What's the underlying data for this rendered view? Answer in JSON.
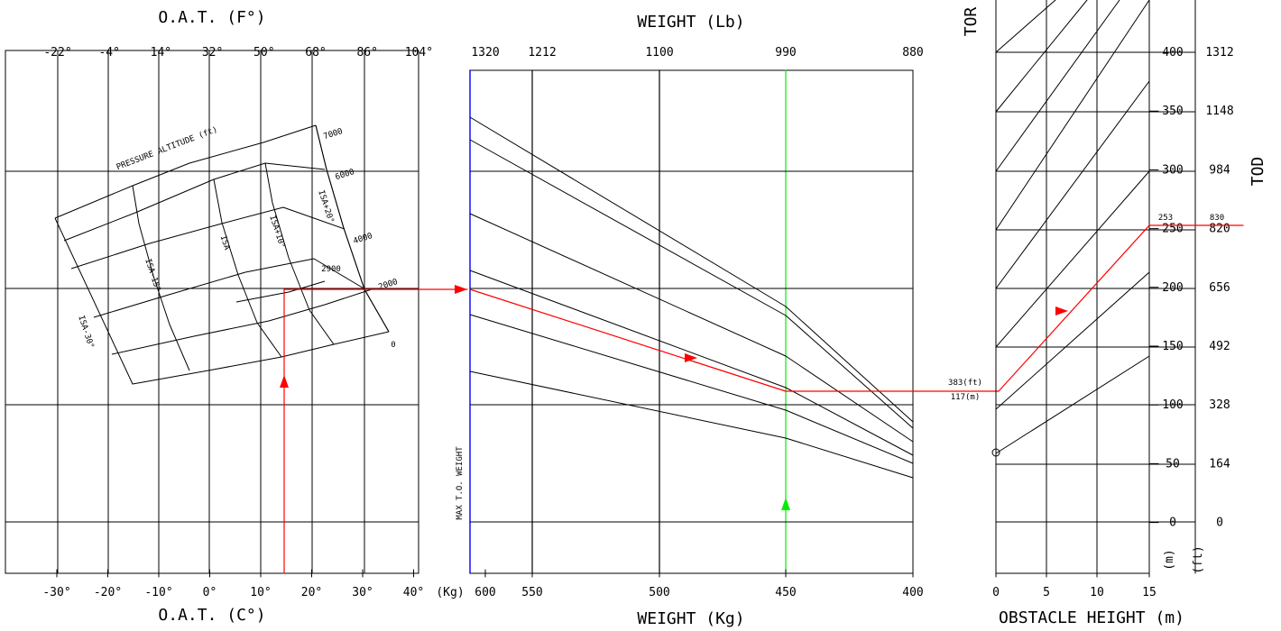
{
  "chart_data": {
    "type": "line",
    "title": "",
    "colors": {
      "line": "#000000",
      "example": "#ff0000",
      "max_weight": "#0000ff",
      "example_weight": "#00ee00",
      "axis": "#000000"
    },
    "panels": {
      "temperature": {
        "top_label": "O.A.T. (F°)",
        "bottom_label": "O.A.T. (C°)",
        "top_ticks": [
          "-22°",
          "-4°",
          "14°",
          "32°",
          "50°",
          "68°",
          "86°",
          "104°"
        ],
        "bottom_ticks": [
          "-30°",
          "-20°",
          "-10°",
          "0°",
          "10°",
          "20°",
          "30°",
          "40°"
        ],
        "pressure_label": "PRESSURE ALTITUDE (ft)",
        "altitude_labels": [
          "7000",
          "6000",
          "4000",
          "2900",
          "2000",
          "0"
        ],
        "isa_labels": [
          "ISA-30°",
          "ISA-15°",
          "ISA",
          "ISA+10°",
          "ISA+20°"
        ]
      },
      "weight": {
        "top_label": "WEIGHT (Lb)",
        "bottom_label": "WEIGHT (Kg)",
        "top_ticks": [
          "1320",
          "1212",
          "1100",
          "990",
          "880"
        ],
        "bottom_prefix": "(Kg)",
        "bottom_ticks": [
          "600",
          "550",
          "500",
          "450",
          "400"
        ],
        "vertical_label": "MAX T.O. WEIGHT"
      },
      "obstacle": {
        "title": "TOR",
        "side_label": "TOD",
        "bottom_label": "OBSTACLE HEIGHT (m)",
        "bottom_ticks": [
          "0",
          "5",
          "10",
          "15"
        ],
        "meter_ticks": [
          "400",
          "350",
          "300",
          "250",
          "200",
          "150",
          "100",
          "50",
          "0"
        ],
        "foot_ticks": [
          "1312",
          "1148",
          "984",
          "820",
          "656",
          "492",
          "328",
          "164",
          "0"
        ],
        "meter_unit": "(m)",
        "foot_unit": "(ft)",
        "example_labels": [
          "383(ft)",
          "117(m)",
          "253",
          "830"
        ]
      }
    },
    "example": {
      "oat_c": 15,
      "pressure_altitude_ft": 2900,
      "weight_kg": 450,
      "tor_m": 117,
      "tor_ft": 383,
      "obstacle_height_m": 15,
      "tod_m": 253,
      "tod_ft": 830
    }
  }
}
